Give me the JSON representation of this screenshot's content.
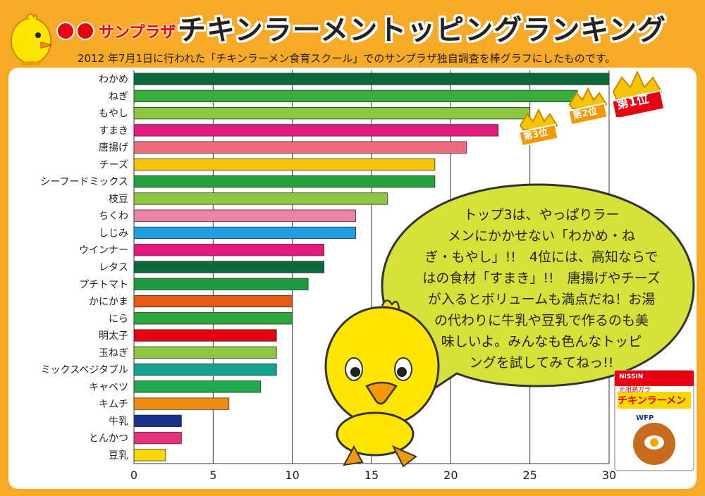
{
  "header": {
    "brand": "サンプラザ",
    "title": "チキンラーメントッピングランキング",
    "subtitle": "2012 年7月1日に行われた「チキンラーメン食育スクール」でのサンプラザ独自調査を棒グラフにしたものです。"
  },
  "ranks": [
    "第1位",
    "第2位",
    "第3位"
  ],
  "bubble": {
    "lines": [
      "トップ3は、やっぱりラー",
      "メンにかかせない「わかめ・ね",
      "ぎ・もやし」!!　4位には、高知ならで",
      "はの食材「すまき」!!　唐揚げやチーズ",
      "が入るとボリュームも満点だね！お湯",
      "の代わりに牛乳や豆乳で作るのも美",
      "味しいよ。みんなも色んなトッピ",
      "ングを試してみてねっ!!"
    ]
  },
  "package": {
    "label": "チキンラーメン",
    "sublabel": "元祖鶏ガラ",
    "brand": "NISSIN",
    "mark": "WFP"
  },
  "chart_data": {
    "type": "bar",
    "orientation": "horizontal",
    "categories": [
      "わかめ",
      "ねぎ",
      "もやし",
      "すまき",
      "唐揚げ",
      "チーズ",
      "シーフードミックス",
      "枝豆",
      "ちくわ",
      "しじみ",
      "ウインナー",
      "レタス",
      "プチトマト",
      "かにかま",
      "にら",
      "明太子",
      "玉ねぎ",
      "ミックスベジタブル",
      "キャベツ",
      "キムチ",
      "牛乳",
      "とんかつ",
      "豆乳"
    ],
    "values": [
      30,
      28,
      25,
      23,
      21,
      19,
      19,
      16,
      14,
      14,
      12,
      12,
      11,
      10,
      10,
      9,
      9,
      9,
      8,
      6,
      3,
      3,
      2
    ],
    "colors": [
      "#0b6a3a",
      "#3aad3c",
      "#8dc63f",
      "#e6197f",
      "#ee6b7d",
      "#f8c300",
      "#25a23c",
      "#8dc63f",
      "#ee82a6",
      "#1ea0e0",
      "#e6197f",
      "#0b6a3a",
      "#1b9a3e",
      "#e85a12",
      "#2da83c",
      "#e60012",
      "#8dc63f",
      "#12a28f",
      "#20a84c",
      "#f08c10",
      "#1d2f8c",
      "#e8327a",
      "#f8d800"
    ],
    "xlim": [
      0,
      30
    ],
    "xticks": [
      "0",
      "5",
      "10",
      "15",
      "20",
      "25",
      "30"
    ],
    "grid": true
  }
}
